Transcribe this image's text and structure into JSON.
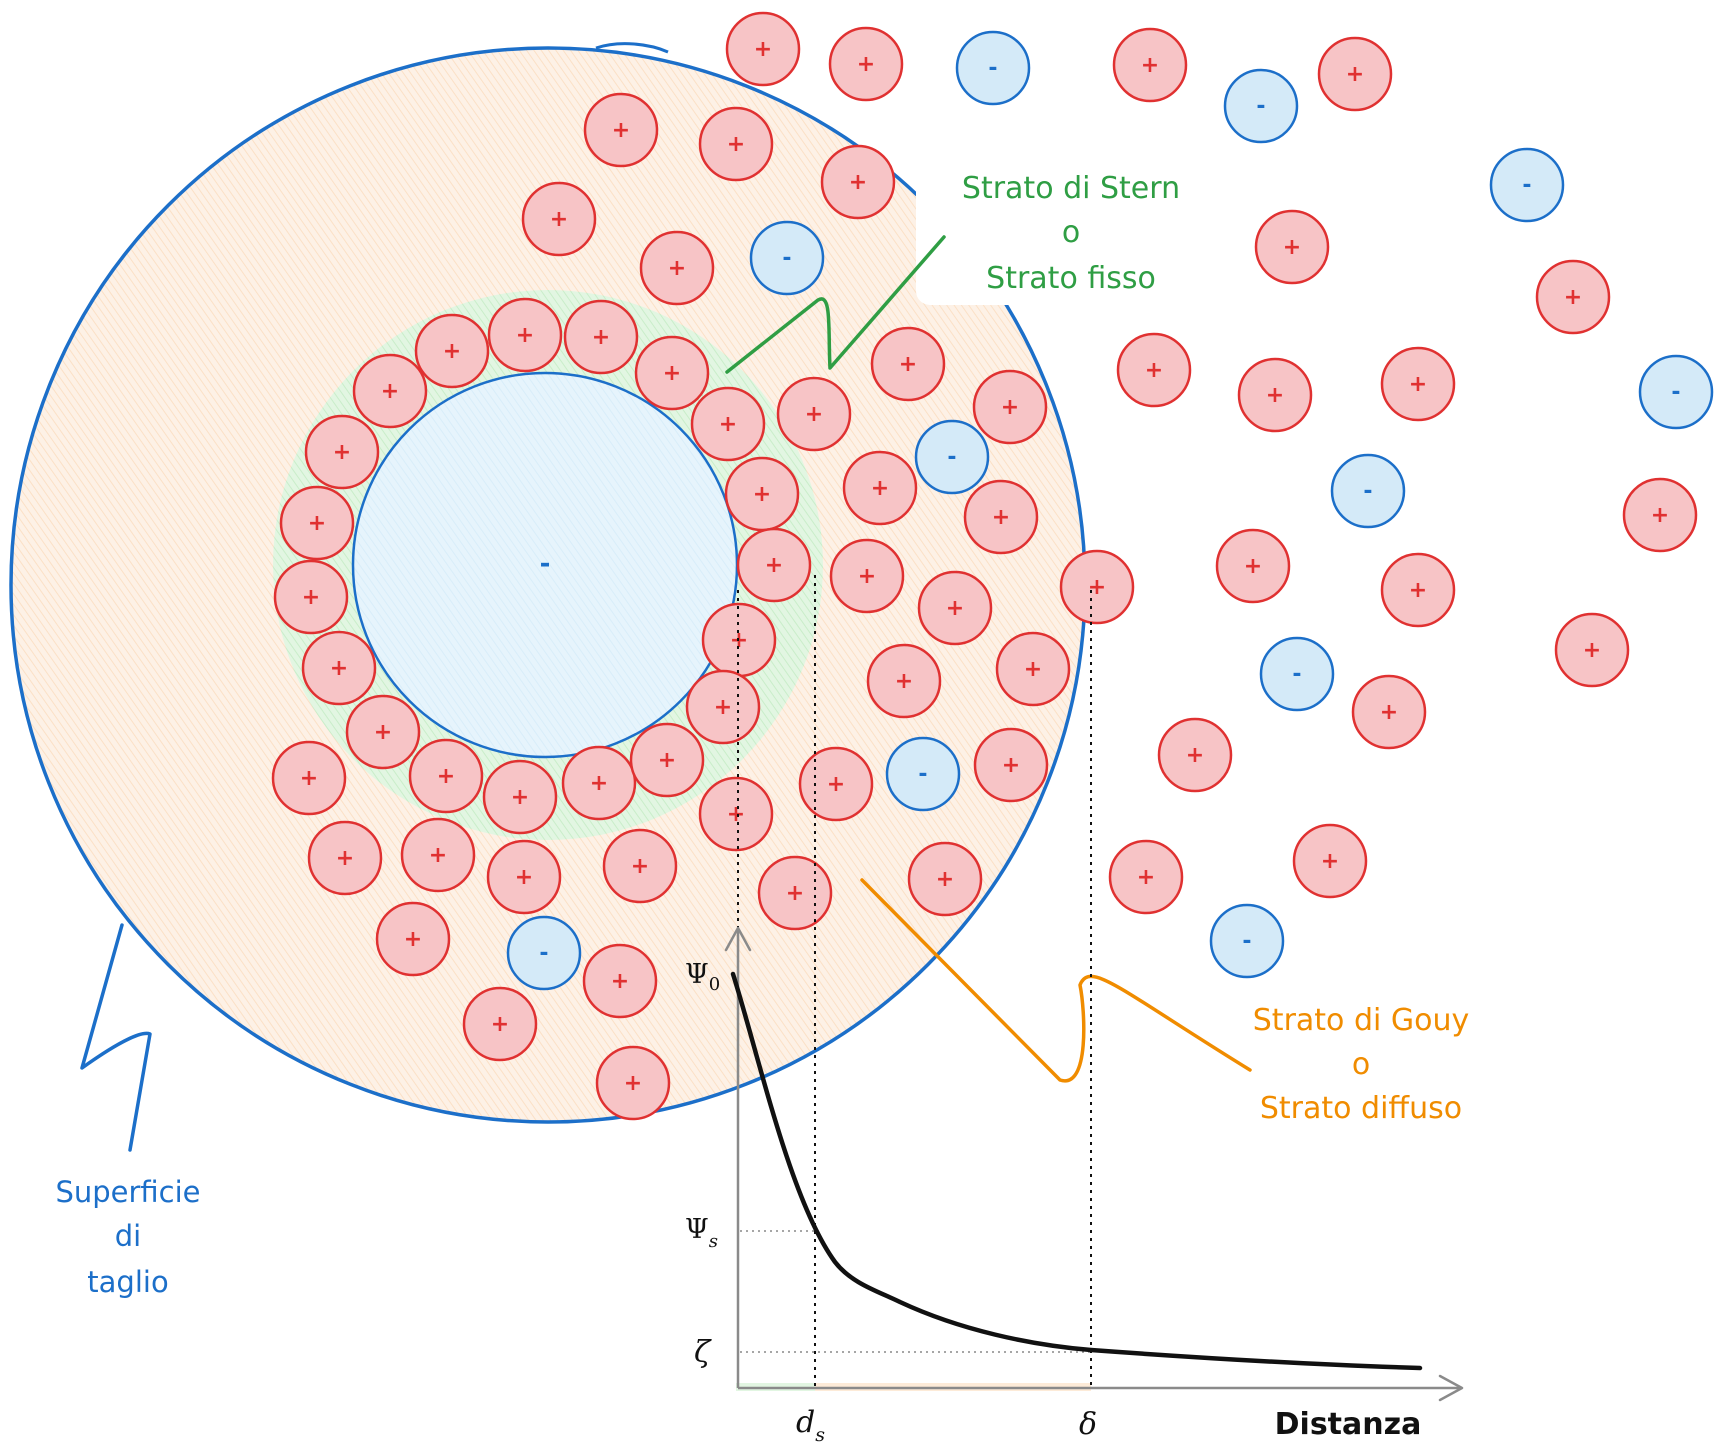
{
  "colors": {
    "positive_fill": "#f7c4c6",
    "positive_stroke": "#e03131",
    "negative_fill": "#d4eaf8",
    "negative_stroke": "#1c6fc9",
    "cut_surface_fill": "#fdeede",
    "stern_fill": "#d6f3d6",
    "stern_label": "#2f9e44",
    "gouy_label": "#f08c00",
    "cut_surface_label": "#1971c2",
    "curve": "#111111",
    "axis": "#8a8a8a"
  },
  "ions": {
    "positive_symbol": "+",
    "negative_symbol": "-"
  },
  "particle": {
    "core_symbol": "-"
  },
  "labels": {
    "stern_line1": "Strato di Stern",
    "stern_line2": "o",
    "stern_line3": "Strato fisso",
    "gouy_line1": "Strato di Gouy",
    "gouy_line2": "o",
    "gouy_line3": "Strato diffuso",
    "cut_line1": "Superficie",
    "cut_line2": "di",
    "cut_line3": "taglio"
  },
  "chart_data": {
    "type": "line",
    "title": "",
    "xlabel": "Distanza",
    "ylabel": "",
    "x_ticks": [
      "d_s",
      "δ"
    ],
    "y_ticks": [
      "Ψ0",
      "Ψs",
      "ζ"
    ],
    "series": [
      {
        "values": [
          "Ψ0 at surface",
          "Ψs at d_s",
          "ζ at δ",
          "decays toward 0"
        ]
      }
    ],
    "grid": false
  },
  "axis_labels": {
    "psi0_main": "Ψ",
    "psi0_sub": "0",
    "psis_main": "Ψ",
    "psis_sub": "s",
    "zeta": "ζ",
    "ds_main": "d",
    "ds_sub": "s",
    "delta": "δ",
    "distance": "Distanza"
  }
}
